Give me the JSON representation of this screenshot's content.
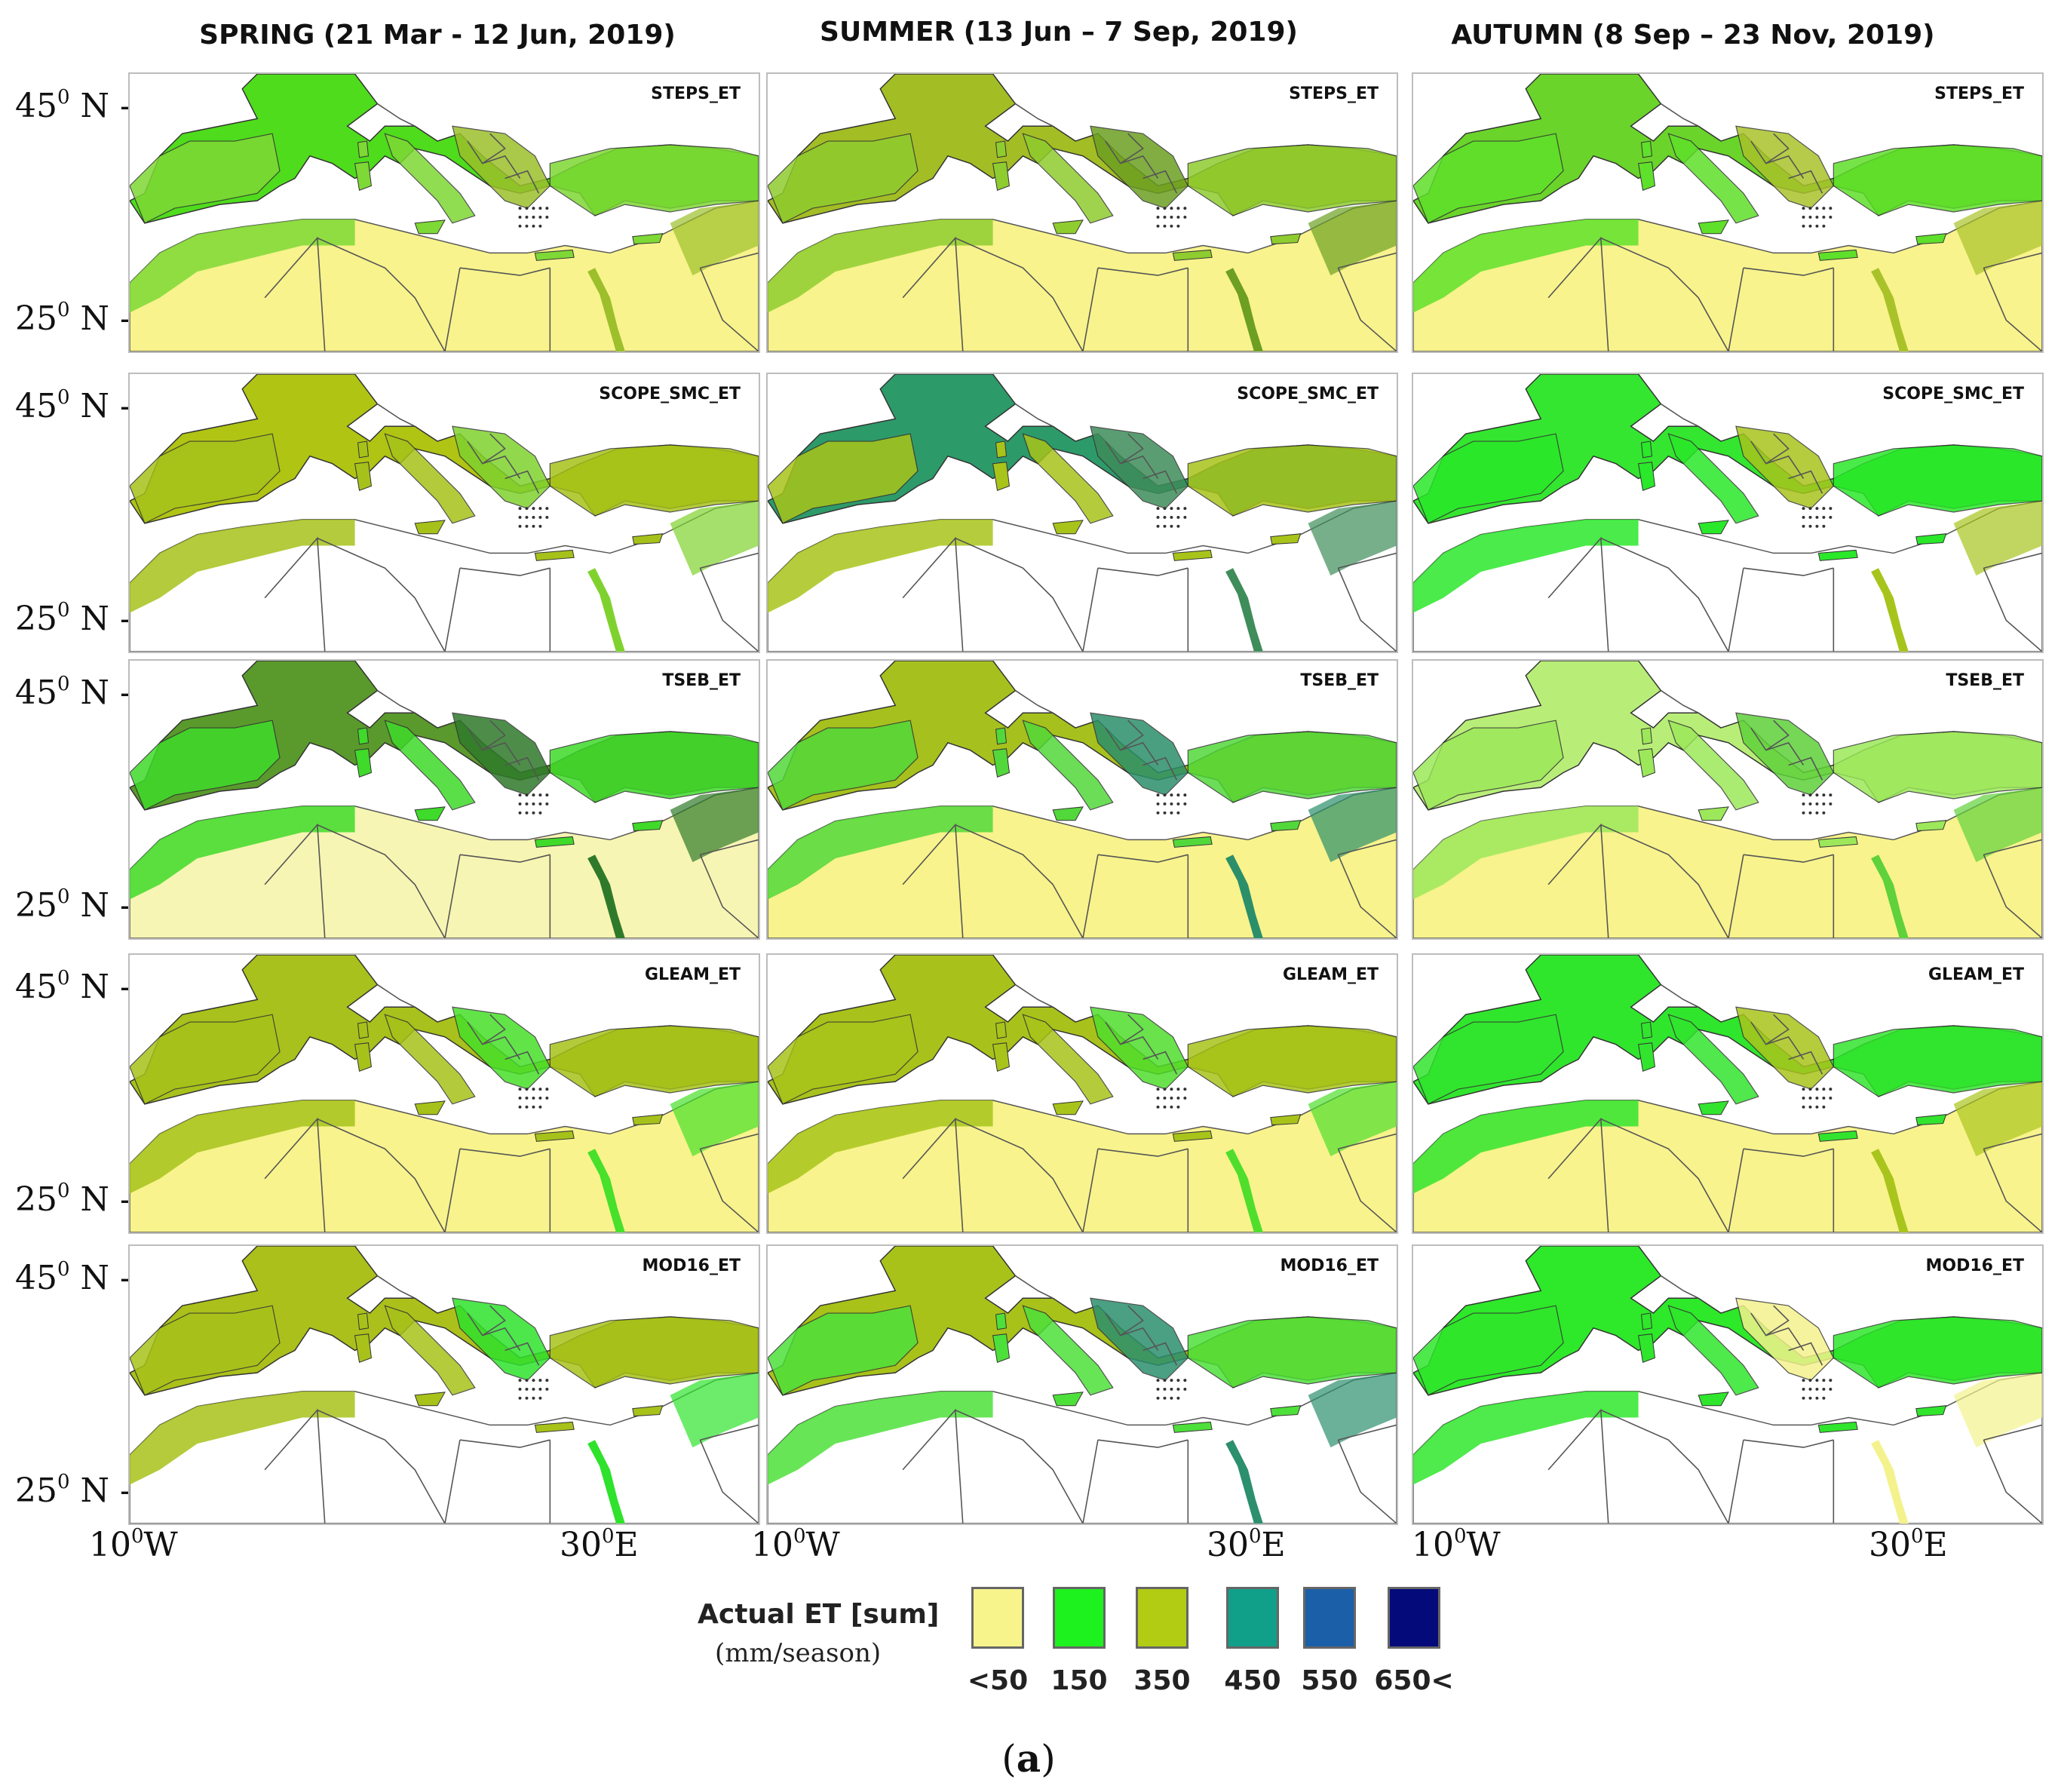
{
  "seasons": [
    {
      "name": "SPRING",
      "dates": "(21 Mar - 12 Jun, 2019)"
    },
    {
      "name": "SUMMER",
      "dates": "(13 Jun – 7 Sep, 2019)"
    },
    {
      "name": "AUTUMN",
      "dates": "(8 Sep – 23 Nov, 2019)"
    }
  ],
  "models": [
    "STEPS_ET",
    "SCOPE_SMC_ET",
    "TSEB_ET",
    "GLEAM_ET",
    "MOD16_ET"
  ],
  "lat_labels": {
    "north": "45",
    "south": "25",
    "hemisphere": "N",
    "unit": "0",
    "tick": "-"
  },
  "lon_labels": {
    "west": "10",
    "west_dir": "W",
    "east": "30",
    "east_dir": "E",
    "unit": "0"
  },
  "legend": {
    "title": "Actual ET [sum]",
    "unit": "(mm/season)",
    "classes": [
      {
        "label": "<50",
        "color": "#f7f48c"
      },
      {
        "label": "150",
        "color": "#1ef21e"
      },
      {
        "label": "350",
        "color": "#b1cc12"
      },
      {
        "label": "450",
        "color": "#10a08a"
      },
      {
        "label": "550",
        "color": "#1a5fa8"
      },
      {
        "label": "650<",
        "color": "#050a7a"
      }
    ]
  },
  "caption": {
    "open": "(",
    "letter": "a",
    "close": ")"
  },
  "map_fills": {
    "STEPS_ET": [
      {
        "land": "#7ed835",
        "north": "#4fdc1c",
        "africa": "#f8f38c",
        "mark": "#9cbf2b"
      },
      {
        "land": "#8fcc2f",
        "north": "#a3bd25",
        "africa": "#f8f38c",
        "mark": "#6c9f22"
      },
      {
        "land": "#5fe02a",
        "north": "#6ad42b",
        "africa": "#f8f38c",
        "mark": "#a9c22a"
      }
    ],
    "SCOPE_SMC_ET": [
      {
        "land": "#a6c21a",
        "north": "#b0c414",
        "africa": "#ffffff",
        "mark": "#7fd22e"
      },
      {
        "land": "#a8c41a",
        "north": "#2d9a6a",
        "africa": "#ffffff",
        "mark": "#3e8d5a"
      },
      {
        "land": "#2ae82a",
        "north": "#34e630",
        "africa": "#ffffff",
        "mark": "#a7c41d"
      }
    ],
    "TSEB_ET": [
      {
        "land": "#3fda2a",
        "north": "#5a9a2c",
        "africa": "#f7f5b3",
        "mark": "#2f7a2a"
      },
      {
        "land": "#52d83a",
        "north": "#a6c11e",
        "africa": "#f8f38c",
        "mark": "#2b8f6a"
      },
      {
        "land": "#9ce85a",
        "north": "#b8ee78",
        "africa": "#f8f38c",
        "mark": "#5fd13a"
      }
    ],
    "GLEAM_ET": [
      {
        "land": "#a6c21a",
        "north": "#a8c11c",
        "africa": "#f8f38c",
        "mark": "#47e02a"
      },
      {
        "land": "#a8c41a",
        "north": "#a9c21b",
        "africa": "#f8f38c",
        "mark": "#4fde2c"
      },
      {
        "land": "#32e42e",
        "north": "#30e62d",
        "africa": "#f8f38c",
        "mark": "#a9c41c"
      }
    ],
    "MOD16_ET": [
      {
        "land": "#a8c21a",
        "north": "#abc01b",
        "africa": "#ffffff",
        "mark": "#2fe22c"
      },
      {
        "land": "#4ee03a",
        "north": "#a8c21a",
        "africa": "#ffffff",
        "mark": "#2c8f6e"
      },
      {
        "land": "#30e62c",
        "north": "#2ee82a",
        "africa": "#ffffff",
        "mark": "#f4f28c"
      }
    ]
  }
}
